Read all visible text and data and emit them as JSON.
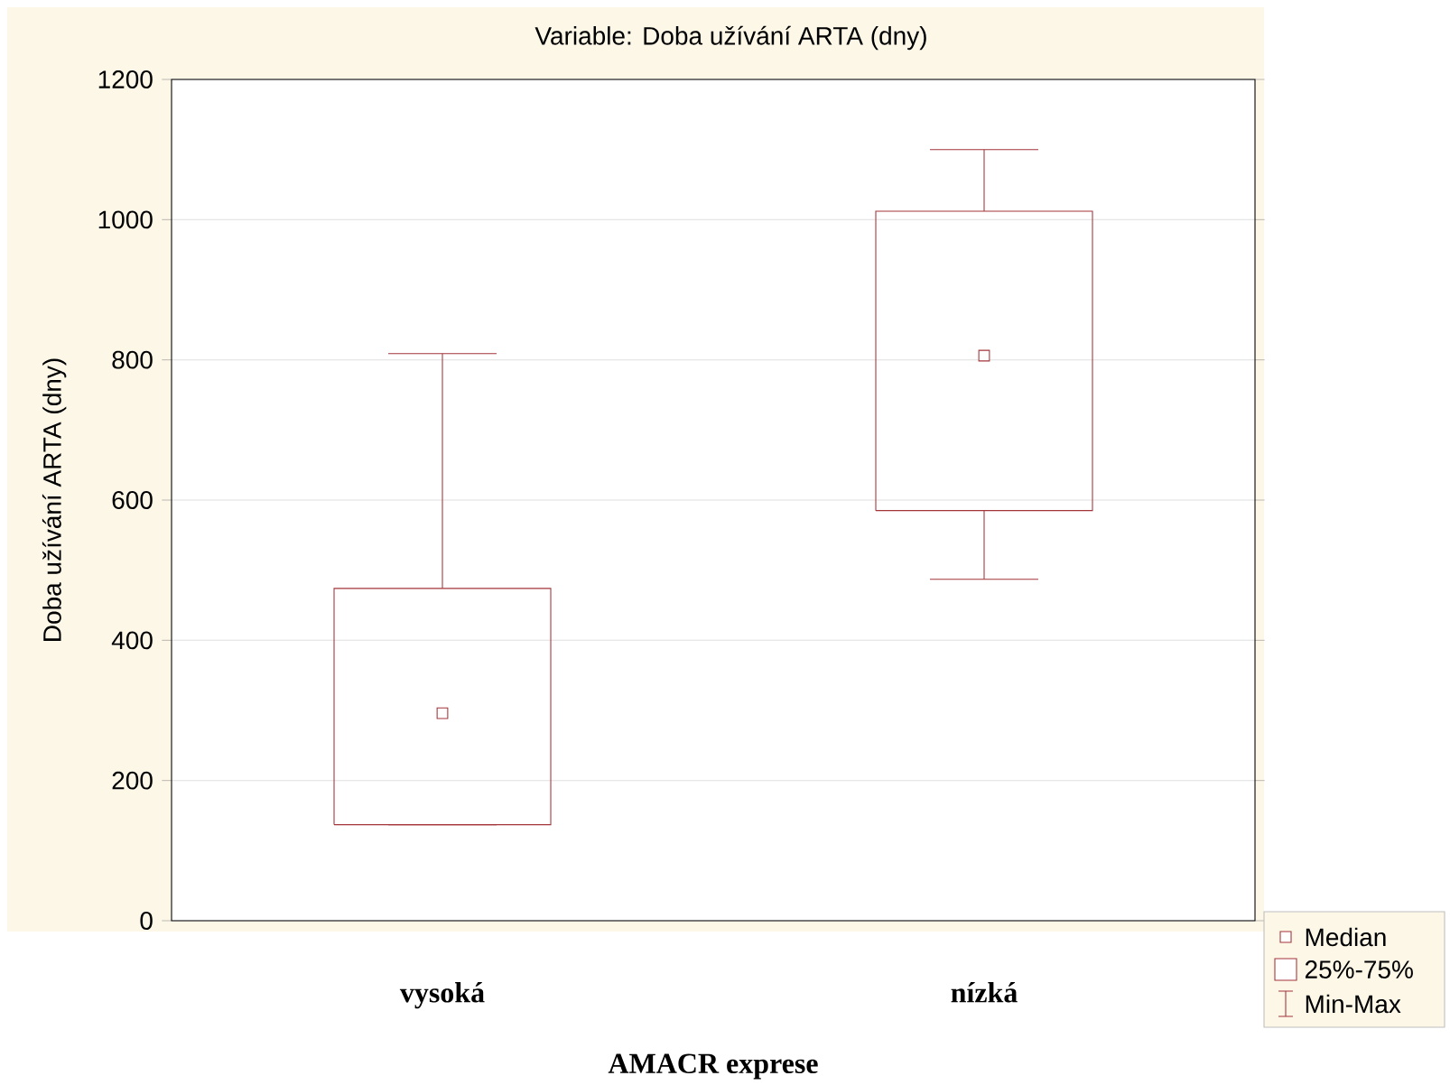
{
  "chart_data": {
    "type": "box",
    "title": "Variable: Doba užívání ARTA (dny)",
    "xlabel": "AMACR exprese",
    "ylabel": "Doba užívání ARTA (dny)",
    "categories": [
      "vysoká",
      "nízká"
    ],
    "boxes": [
      {
        "low": 137,
        "q1": 137,
        "median": 296,
        "q3": 474,
        "high": 809
      },
      {
        "low": 487,
        "q1": 585,
        "median": 806,
        "q3": 1012,
        "high": 1100
      }
    ],
    "color": "#a3343a",
    "ylim": [
      0,
      1200
    ],
    "yticks": [
      0,
      200,
      400,
      600,
      800,
      1000,
      1200
    ],
    "grid": "y",
    "annotations": [
      "Median",
      "25%-75%",
      "Min-Max"
    ]
  }
}
